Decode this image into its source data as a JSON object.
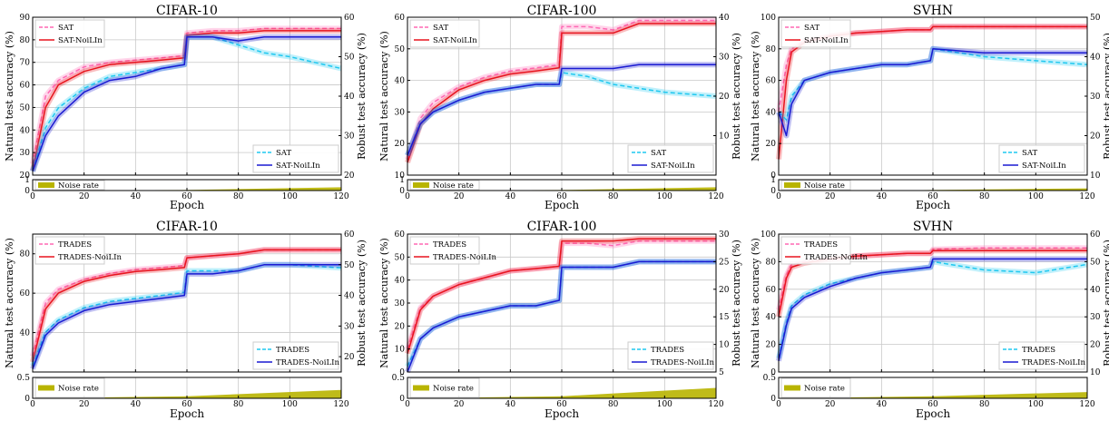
{
  "figure": {
    "noise_label": "Noise rate",
    "epoch_label": "Epoch",
    "left_ylabel": "Natural test accuracy (%)",
    "right_ylabel": "Robust test accuracy (%)"
  },
  "colors": {
    "nat_base": "#ff69b4",
    "nat_ours": "#e8141e",
    "rob_base": "#1ec8f0",
    "rob_ours": "#1a1ad2",
    "noise": "#b8b400"
  },
  "chart_data": [
    {
      "type": "line",
      "title": "CIFAR-10",
      "xlabel": "Epoch",
      "xlim": [
        0,
        120
      ],
      "xticks": [
        0,
        20,
        40,
        60,
        80,
        100,
        120
      ],
      "ylim": [
        20,
        90
      ],
      "yticks": [
        20,
        30,
        40,
        50,
        60,
        70,
        80,
        90
      ],
      "y2lim": [
        20,
        60
      ],
      "y2ticks": [
        20,
        30,
        40,
        50,
        60
      ],
      "noise_ylim": [
        0,
        1
      ],
      "noise_yticks": [
        0,
        1
      ],
      "legend_top": [
        "SAT",
        "SAT-NoiLIn"
      ],
      "legend_bottom": [
        "SAT",
        "SAT-NoiLIn"
      ],
      "noise": {
        "x": [
          0,
          60,
          120
        ],
        "y": [
          0.0,
          0.05,
          0.3
        ]
      },
      "series": [
        {
          "name": "SAT",
          "axis": "left",
          "x": [
            0,
            5,
            10,
            20,
            30,
            40,
            50,
            59,
            60,
            70,
            80,
            90,
            100,
            120
          ],
          "y": [
            25,
            55,
            62,
            68,
            70,
            71,
            72,
            73,
            83,
            84,
            84,
            85,
            85,
            85
          ]
        },
        {
          "name": "SAT-NoiLIn",
          "axis": "left",
          "x": [
            0,
            5,
            10,
            20,
            30,
            40,
            50,
            59,
            60,
            70,
            80,
            90,
            100,
            120
          ],
          "y": [
            22,
            50,
            60,
            66,
            69,
            70,
            71,
            72,
            82,
            83,
            83,
            84,
            84,
            84
          ]
        },
        {
          "name": "SAT",
          "axis": "right",
          "x": [
            0,
            5,
            10,
            20,
            30,
            40,
            50,
            59,
            60,
            70,
            80,
            90,
            100,
            120
          ],
          "y": [
            21,
            32,
            37,
            42,
            45,
            46,
            47,
            48,
            55,
            55,
            53,
            51,
            50,
            47
          ]
        },
        {
          "name": "SAT-NoiLIn",
          "axis": "right",
          "x": [
            0,
            5,
            10,
            20,
            30,
            40,
            50,
            59,
            60,
            70,
            80,
            90,
            100,
            120
          ],
          "y": [
            21,
            30,
            35,
            41,
            44,
            45,
            47,
            48,
            55,
            55,
            54,
            55,
            55,
            55
          ]
        }
      ]
    },
    {
      "type": "line",
      "title": "CIFAR-100",
      "xlabel": "Epoch",
      "xlim": [
        0,
        120
      ],
      "xticks": [
        0,
        20,
        40,
        60,
        80,
        100,
        120
      ],
      "ylim": [
        10,
        60
      ],
      "yticks": [
        10,
        20,
        30,
        40,
        50,
        60
      ],
      "y2lim": [
        0,
        40
      ],
      "y2ticks": [
        10,
        20,
        30,
        40
      ],
      "noise_ylim": [
        0,
        1
      ],
      "noise_yticks": [
        0,
        1
      ],
      "legend_top": [
        "SAT",
        "SAT-NoiLIn"
      ],
      "legend_bottom": [
        "SAT",
        "SAT-NoiLIn"
      ],
      "noise": {
        "x": [
          0,
          60,
          120
        ],
        "y": [
          0.0,
          0.05,
          0.3
        ]
      },
      "series": [
        {
          "name": "SAT",
          "axis": "left",
          "x": [
            0,
            5,
            10,
            20,
            30,
            40,
            50,
            59,
            60,
            70,
            80,
            90,
            100,
            120
          ],
          "y": [
            15,
            28,
            33,
            38,
            41,
            43,
            44,
            45,
            57,
            57,
            56,
            59,
            59,
            59
          ]
        },
        {
          "name": "SAT-NoiLIn",
          "axis": "left",
          "x": [
            0,
            5,
            10,
            20,
            30,
            40,
            50,
            59,
            60,
            70,
            80,
            90,
            100,
            120
          ],
          "y": [
            14,
            26,
            31,
            37,
            40,
            42,
            43,
            44,
            55,
            55,
            55,
            58,
            58,
            58
          ]
        },
        {
          "name": "SAT",
          "axis": "right",
          "x": [
            0,
            5,
            10,
            20,
            30,
            40,
            50,
            59,
            60,
            70,
            80,
            90,
            100,
            120
          ],
          "y": [
            5,
            13,
            16,
            19,
            21,
            22,
            23,
            23,
            26,
            25,
            23,
            22,
            21,
            20
          ]
        },
        {
          "name": "SAT-NoiLIn",
          "axis": "right",
          "x": [
            0,
            5,
            10,
            20,
            30,
            40,
            50,
            59,
            60,
            70,
            80,
            90,
            100,
            120
          ],
          "y": [
            5,
            13,
            16,
            19,
            21,
            22,
            23,
            23,
            27,
            27,
            27,
            28,
            28,
            28
          ]
        }
      ]
    },
    {
      "type": "line",
      "title": "SVHN",
      "xlabel": "Epoch",
      "xlim": [
        0,
        120
      ],
      "xticks": [
        0,
        20,
        40,
        60,
        80,
        100,
        120
      ],
      "ylim": [
        0,
        100
      ],
      "yticks": [
        0,
        20,
        40,
        60,
        80,
        100
      ],
      "y2lim": [
        10,
        50
      ],
      "y2ticks": [
        10,
        20,
        30,
        40,
        50
      ],
      "noise_ylim": [
        0,
        1
      ],
      "noise_yticks": [
        0,
        1
      ],
      "legend_top": [
        "SAT",
        "SAT-NoiLIn"
      ],
      "legend_bottom": [
        "SAT",
        "SAT-NoiLIn"
      ],
      "noise": {
        "x": [
          0,
          60,
          120
        ],
        "y": [
          0.0,
          0.05,
          0.2
        ]
      },
      "series": [
        {
          "name": "SAT",
          "axis": "left",
          "x": [
            0,
            3,
            5,
            10,
            20,
            30,
            40,
            50,
            59,
            60,
            80,
            100,
            120
          ],
          "y": [
            40,
            70,
            80,
            85,
            88,
            90,
            91,
            92,
            92,
            94,
            94,
            94,
            94
          ]
        },
        {
          "name": "SAT-NoiLIn",
          "axis": "left",
          "x": [
            0,
            3,
            5,
            10,
            20,
            30,
            40,
            50,
            59,
            60,
            80,
            100,
            120
          ],
          "y": [
            10,
            60,
            78,
            84,
            88,
            90,
            91,
            92,
            92,
            94,
            94,
            94,
            94
          ]
        },
        {
          "name": "SAT",
          "axis": "right",
          "x": [
            0,
            3,
            5,
            10,
            20,
            30,
            40,
            50,
            59,
            60,
            80,
            100,
            120
          ],
          "y": [
            26,
            24,
            30,
            34,
            36,
            37,
            38,
            38,
            39,
            42,
            40,
            39,
            38
          ]
        },
        {
          "name": "SAT-NoiLIn",
          "axis": "right",
          "x": [
            0,
            3,
            5,
            10,
            20,
            30,
            40,
            50,
            59,
            60,
            80,
            100,
            120
          ],
          "y": [
            26,
            20,
            28,
            34,
            36,
            37,
            38,
            38,
            39,
            42,
            41,
            41,
            41
          ]
        }
      ]
    },
    {
      "type": "line",
      "title": "CIFAR-10",
      "xlabel": "Epoch",
      "xlim": [
        0,
        120
      ],
      "xticks": [
        0,
        20,
        40,
        60,
        80,
        100,
        120
      ],
      "ylim": [
        20,
        90
      ],
      "yticks": [
        40,
        60,
        80
      ],
      "y2lim": [
        15,
        60
      ],
      "y2ticks": [
        20,
        30,
        40,
        50,
        60
      ],
      "noise_ylim": [
        0,
        0.5
      ],
      "noise_yticks": [
        0,
        0.5
      ],
      "legend_top": [
        "TRADES",
        "TRADES-NoiLIn"
      ],
      "legend_bottom": [
        "TRADES",
        "TRADES-NoiLIn"
      ],
      "noise": {
        "x": [
          0,
          60,
          120
        ],
        "y": [
          0.0,
          0.05,
          0.2
        ]
      },
      "series": [
        {
          "name": "TRADES",
          "axis": "left",
          "x": [
            0,
            5,
            10,
            20,
            30,
            40,
            50,
            59,
            60,
            70,
            80,
            90,
            100,
            120
          ],
          "y": [
            28,
            55,
            62,
            67,
            70,
            72,
            73,
            74,
            78,
            79,
            80,
            82,
            82,
            82
          ]
        },
        {
          "name": "TRADES-NoiLIn",
          "axis": "left",
          "x": [
            0,
            5,
            10,
            20,
            30,
            40,
            50,
            59,
            60,
            70,
            80,
            90,
            100,
            120
          ],
          "y": [
            25,
            52,
            60,
            66,
            69,
            71,
            72,
            73,
            78,
            79,
            80,
            82,
            82,
            82
          ]
        },
        {
          "name": "TRADES",
          "axis": "right",
          "x": [
            0,
            5,
            10,
            20,
            30,
            40,
            50,
            59,
            60,
            70,
            80,
            90,
            100,
            120
          ],
          "y": [
            17,
            28,
            32,
            36,
            38,
            39,
            40,
            41,
            48,
            48,
            48,
            50,
            50,
            49
          ]
        },
        {
          "name": "TRADES-NoiLIn",
          "axis": "right",
          "x": [
            0,
            5,
            10,
            20,
            30,
            40,
            50,
            59,
            60,
            70,
            80,
            90,
            100,
            120
          ],
          "y": [
            16,
            27,
            31,
            35,
            37,
            38,
            39,
            40,
            47,
            47,
            48,
            50,
            50,
            50
          ]
        }
      ]
    },
    {
      "type": "line",
      "title": "CIFAR-100",
      "xlabel": "Epoch",
      "xlim": [
        0,
        120
      ],
      "xticks": [
        0,
        20,
        40,
        60,
        80,
        100,
        120
      ],
      "ylim": [
        0,
        60
      ],
      "yticks": [
        0,
        10,
        20,
        30,
        40,
        50,
        60
      ],
      "y2lim": [
        5,
        30
      ],
      "y2ticks": [
        5,
        10,
        15,
        20,
        25,
        30
      ],
      "noise_ylim": [
        0,
        0.5
      ],
      "noise_yticks": [
        0,
        0.5
      ],
      "legend_top": [
        "TRADES",
        "TRADES-NoiLIn"
      ],
      "legend_bottom": [
        "TRADES",
        "TRADES-NoiLIn"
      ],
      "noise": {
        "x": [
          0,
          60,
          120
        ],
        "y": [
          0.0,
          0.05,
          0.25
        ]
      },
      "series": [
        {
          "name": "TRADES",
          "axis": "left",
          "x": [
            0,
            5,
            10,
            20,
            30,
            40,
            50,
            59,
            60,
            70,
            80,
            90,
            100,
            120
          ],
          "y": [
            10,
            28,
            33,
            38,
            41,
            44,
            45,
            46,
            56,
            56,
            55,
            57,
            57,
            57
          ]
        },
        {
          "name": "TRADES-NoiLIn",
          "axis": "left",
          "x": [
            0,
            5,
            10,
            20,
            30,
            40,
            50,
            59,
            60,
            70,
            80,
            90,
            100,
            120
          ],
          "y": [
            8,
            27,
            33,
            38,
            41,
            44,
            45,
            46,
            57,
            57,
            57,
            58,
            58,
            58
          ]
        },
        {
          "name": "TRADES",
          "axis": "right",
          "x": [
            0,
            5,
            10,
            20,
            30,
            40,
            50,
            59,
            60,
            70,
            80,
            90,
            100,
            120
          ],
          "y": [
            6,
            11,
            13,
            15,
            16,
            17,
            17,
            18,
            24,
            24,
            24,
            25,
            25,
            25
          ]
        },
        {
          "name": "TRADES-NoiLIn",
          "axis": "right",
          "x": [
            0,
            5,
            10,
            20,
            30,
            40,
            50,
            59,
            60,
            70,
            80,
            90,
            100,
            120
          ],
          "y": [
            5,
            11,
            13,
            15,
            16,
            17,
            17,
            18,
            24,
            24,
            24,
            25,
            25,
            25
          ]
        }
      ]
    },
    {
      "type": "line",
      "title": "SVHN",
      "xlabel": "Epoch",
      "xlim": [
        0,
        120
      ],
      "xticks": [
        0,
        20,
        40,
        60,
        80,
        100,
        120
      ],
      "ylim": [
        0,
        100
      ],
      "yticks": [
        0,
        20,
        40,
        60,
        80,
        100
      ],
      "y2lim": [
        10,
        60
      ],
      "y2ticks": [
        10,
        20,
        30,
        40,
        50,
        60
      ],
      "noise_ylim": [
        0,
        0.5
      ],
      "noise_yticks": [
        0,
        0.5
      ],
      "legend_top": [
        "TRADES",
        "TRADES-NoiLIn"
      ],
      "legend_bottom": [
        "TRADES",
        "TRADES-NoiLIn"
      ],
      "noise": {
        "x": [
          0,
          60,
          120
        ],
        "y": [
          0.0,
          0.05,
          0.15
        ]
      },
      "series": [
        {
          "name": "TRADES",
          "axis": "left",
          "x": [
            0,
            3,
            5,
            10,
            20,
            30,
            40,
            50,
            59,
            60,
            80,
            100,
            120
          ],
          "y": [
            45,
            70,
            78,
            80,
            82,
            84,
            85,
            86,
            86,
            89,
            90,
            90,
            90
          ]
        },
        {
          "name": "TRADES-NoiLIn",
          "axis": "left",
          "x": [
            0,
            3,
            5,
            10,
            20,
            30,
            40,
            50,
            59,
            60,
            80,
            100,
            120
          ],
          "y": [
            40,
            68,
            76,
            79,
            82,
            84,
            85,
            86,
            86,
            88,
            88,
            88,
            88
          ]
        },
        {
          "name": "TRADES",
          "axis": "right",
          "x": [
            0,
            3,
            5,
            10,
            20,
            30,
            40,
            50,
            59,
            60,
            80,
            100,
            120
          ],
          "y": [
            15,
            28,
            34,
            38,
            42,
            44,
            46,
            47,
            48,
            50,
            47,
            46,
            49
          ]
        },
        {
          "name": "TRADES-NoiLIn",
          "axis": "right",
          "x": [
            0,
            3,
            5,
            10,
            20,
            30,
            40,
            50,
            59,
            60,
            80,
            100,
            120
          ],
          "y": [
            14,
            27,
            33,
            37,
            41,
            44,
            46,
            47,
            48,
            51,
            51,
            51,
            51
          ]
        }
      ]
    }
  ]
}
